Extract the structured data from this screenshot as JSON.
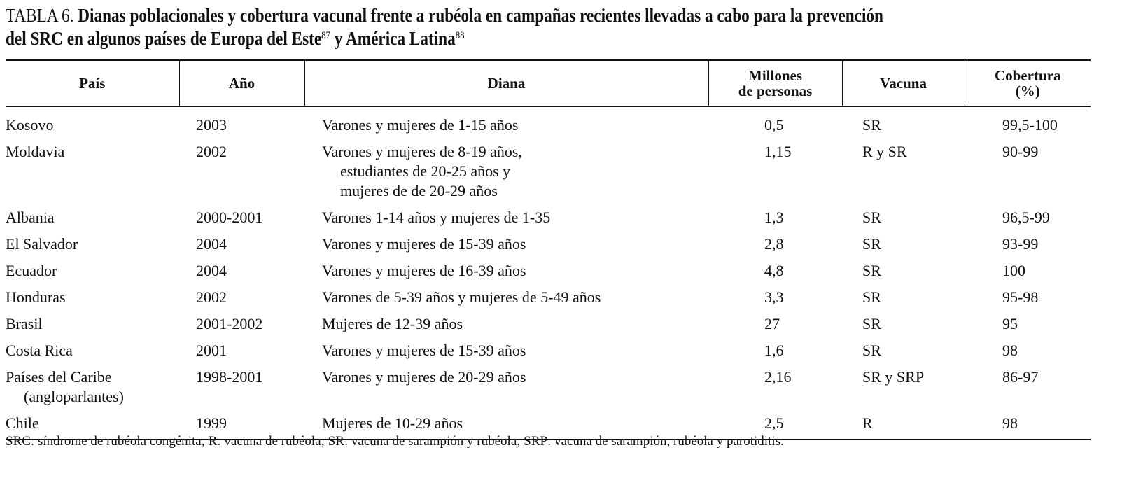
{
  "title": {
    "label": "TABLA 6.",
    "text_line1": "Dianas poblacionales y cobertura vacunal frente a rubéola en campañas recientes llevadas a cabo para la prevención",
    "text_line2a": "del SRC en algunos países de Europa del Este",
    "ref1": "87",
    "text_line2b": " y América Latina",
    "ref2": "88"
  },
  "table": {
    "headers": [
      "País",
      "Año",
      "Diana",
      "Millones de personas",
      "Vacuna",
      "Cobertura (%)"
    ],
    "header_lines": {
      "millones_1": "Millones",
      "millones_2": "de personas",
      "cobertura_1": "Cobertura",
      "cobertura_2": "(%)"
    },
    "rows": [
      {
        "pais": [
          "Kosovo"
        ],
        "ano": "2003",
        "diana": [
          "Varones y mujeres de 1-15 años"
        ],
        "millones": "0,5",
        "vacuna": "SR",
        "cobertura": "99,5-100"
      },
      {
        "pais": [
          "Moldavia"
        ],
        "ano": "2002",
        "diana": [
          "Varones y mujeres de 8-19 años,",
          "estudiantes de 20-25 años y",
          "mujeres de de 20-29 años"
        ],
        "millones": "1,15",
        "vacuna": "R y SR",
        "cobertura": "90-99"
      },
      {
        "pais": [
          "Albania"
        ],
        "ano": "2000-2001",
        "diana": [
          "Varones 1-14 años y mujeres de 1-35"
        ],
        "millones": "1,3",
        "vacuna": "SR",
        "cobertura": "96,5-99"
      },
      {
        "pais": [
          "El Salvador"
        ],
        "ano": "2004",
        "diana": [
          "Varones y mujeres de 15-39 años"
        ],
        "millones": "2,8",
        "vacuna": "SR",
        "cobertura": "93-99"
      },
      {
        "pais": [
          "Ecuador"
        ],
        "ano": "2004",
        "diana": [
          "Varones y mujeres de 16-39 años"
        ],
        "millones": "4,8",
        "vacuna": "SR",
        "cobertura": "100"
      },
      {
        "pais": [
          "Honduras"
        ],
        "ano": "2002",
        "diana": [
          "Varones de 5-39 años y mujeres de 5-49 años"
        ],
        "millones": "3,3",
        "vacuna": "SR",
        "cobertura": "95-98"
      },
      {
        "pais": [
          "Brasil"
        ],
        "ano": "2001-2002",
        "diana": [
          "Mujeres de 12-39 años"
        ],
        "millones": "27",
        "vacuna": "SR",
        "cobertura": "95"
      },
      {
        "pais": [
          "Costa Rica"
        ],
        "ano": "2001",
        "diana": [
          "Varones y mujeres de 15-39 años"
        ],
        "millones": "1,6",
        "vacuna": "SR",
        "cobertura": "98"
      },
      {
        "pais": [
          "Países del Caribe",
          "(angloparlantes)"
        ],
        "ano": "1998-2001",
        "diana": [
          "Varones y mujeres de 20-29 años"
        ],
        "millones": "2,16",
        "vacuna": "SR y SRP",
        "cobertura": "86-97"
      },
      {
        "pais": [
          "Chile"
        ],
        "ano": "1999",
        "diana": [
          "Mujeres de 10-29 años"
        ],
        "millones": "2,5",
        "vacuna": "R",
        "cobertura": "98"
      }
    ]
  },
  "footnote": "SRC: síndrome de rubéola congénita; R: vacuna de rubéola; SR: vacuna de sarampión y rubéola; SRP: vacuna de sarampión, rubéola y parotiditis."
}
